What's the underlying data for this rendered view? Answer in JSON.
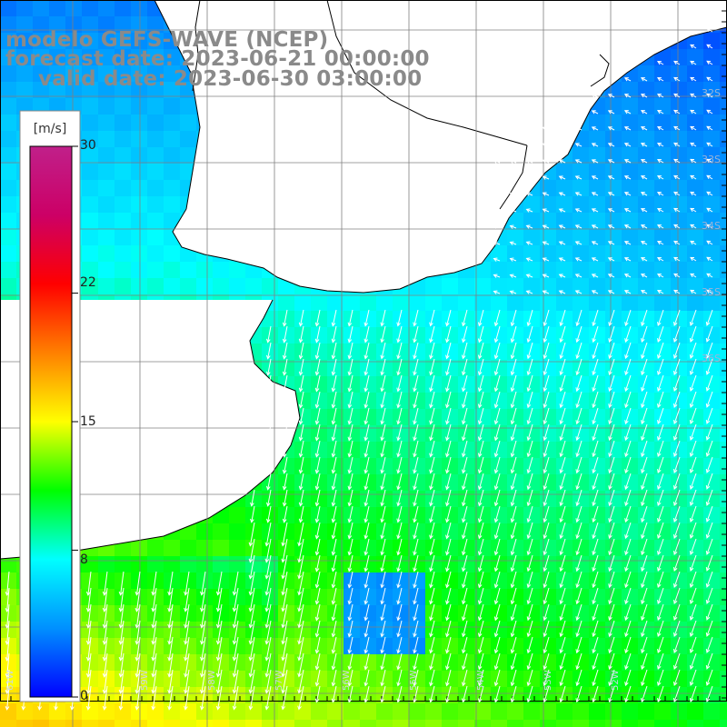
{
  "title": {
    "model": "modelo GEFS-WAVE (NCEP)",
    "forecast_date": "forecast date: 2023-06-21 00:00:00",
    "valid_date": "valid date: 2023-06-30 03:00:00"
  },
  "colorbar": {
    "unit": "[m/s]",
    "min": 0,
    "max": 30,
    "tick_labels": [
      "30",
      "22",
      "15",
      "8",
      "0"
    ],
    "tick_values": [
      30,
      22,
      15,
      8,
      0
    ],
    "colors": [
      "#0000ff",
      "#0090ff",
      "#00ffff",
      "#00ff00",
      "#ffff00",
      "#ff8000",
      "#ff0000",
      "#cc0066",
      "#c0208a"
    ]
  },
  "map": {
    "land_color": "#ffffff",
    "grid_color": "#808080",
    "coast_color": "#000000",
    "arrow_color": "#ffffff",
    "lat_labels": [
      "32S",
      "33S",
      "34S",
      "35S",
      "36S"
    ],
    "lon_labels": [
      "61W",
      "60W",
      "59W",
      "58W",
      "57W",
      "56W",
      "55W",
      "54W",
      "53W",
      "52W"
    ]
  }
}
